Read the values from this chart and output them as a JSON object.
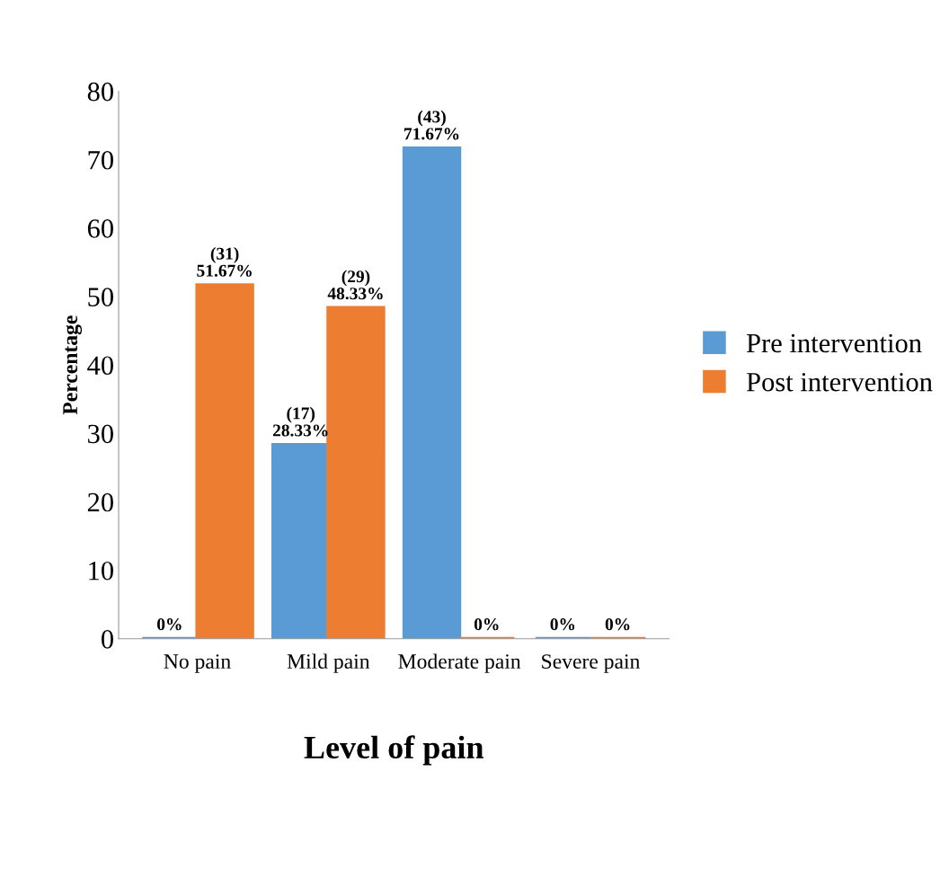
{
  "chart_data": {
    "type": "bar",
    "xlabel": "Level of pain",
    "ylabel": "Percentage",
    "categories": [
      "No pain",
      "Mild pain",
      "Moderate pain",
      "Severe pain"
    ],
    "series": [
      {
        "name": "Pre intervention",
        "color": "#5b9bd5",
        "values": [
          0,
          28.33,
          71.67,
          0
        ],
        "value_labels": [
          "0%",
          "(17)\n28.33%",
          "(43)\n71.67%",
          "0%"
        ]
      },
      {
        "name": "Post intervention",
        "color": "#ed7d31",
        "values": [
          51.67,
          48.33,
          0,
          0
        ],
        "value_labels": [
          "(31)\n51.67%",
          "(29)\n48.33%",
          "0%",
          "0%"
        ]
      }
    ],
    "ylim": [
      0,
      80
    ],
    "yticks": [
      0,
      10,
      20,
      30,
      40,
      50,
      60,
      70,
      80
    ],
    "grid": false,
    "legend": "right"
  }
}
